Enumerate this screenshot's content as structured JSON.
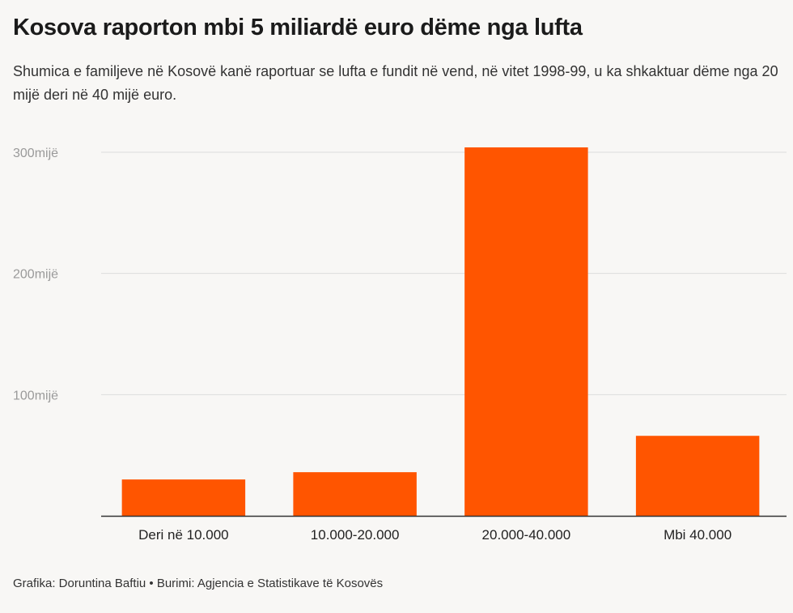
{
  "header": {
    "title": "Kosova raporton mbi 5 miliardë euro dëme nga lufta",
    "subtitle": "Shumica e familjeve në Kosovë kanë raportuar se lufta e fundit në vend, në vitet 1998-99, u ka shkaktuar dëme nga 20 mijë deri në 40 mijë euro."
  },
  "footer": {
    "credit": "Grafika: Doruntina Baftiu • Burimi: Agjencia e Statistikave të Kosovës"
  },
  "colors": {
    "bar": "#ff5500",
    "grid": "#dddddd",
    "axis": "#333333"
  },
  "chart_data": {
    "type": "bar",
    "title": "Kosova raporton mbi 5 miliardë euro dëme nga lufta",
    "xlabel": "",
    "ylabel": "",
    "categories": [
      "Deri në 10.000",
      "10.000-20.000",
      "20.000-40.000",
      "Mbi 40.000"
    ],
    "values": [
      30000,
      36000,
      304000,
      66000
    ],
    "ylim": [
      0,
      300000
    ],
    "yticks": [
      {
        "value": 100000,
        "label": "100mijë"
      },
      {
        "value": 200000,
        "label": "200mijë"
      },
      {
        "value": 300000,
        "label": "300mijë"
      }
    ],
    "grid": true
  }
}
